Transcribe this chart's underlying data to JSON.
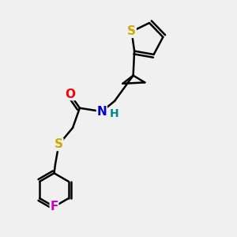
{
  "background_color": "#f0f0f0",
  "bond_color": "#000000",
  "bond_width": 1.8,
  "atom_colors": {
    "S_thio": "#ccaa00",
    "S_thioether": "#ccaa00",
    "O": "#ff0000",
    "N": "#0000cc",
    "H": "#008888",
    "F": "#cc00cc"
  },
  "font_size_atoms": 11,
  "fig_width": 3.0,
  "fig_height": 3.0,
  "dpi": 100
}
